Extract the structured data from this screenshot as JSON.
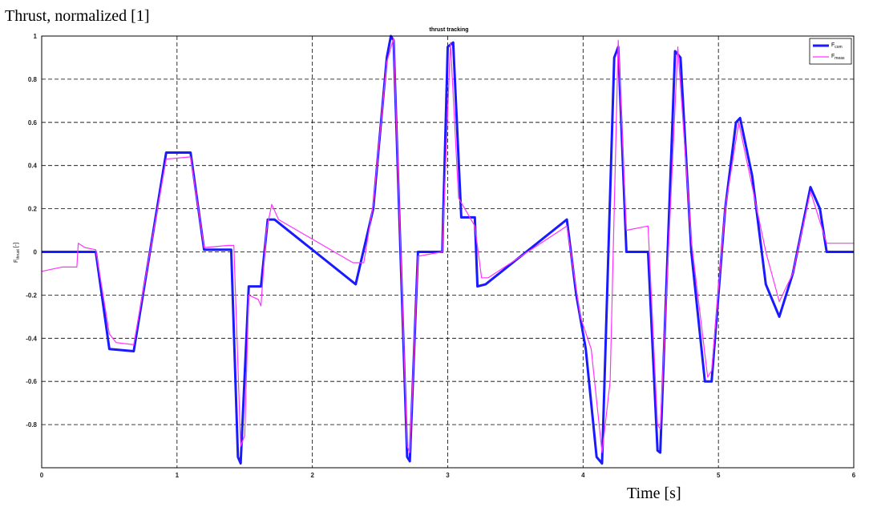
{
  "chart_data": {
    "type": "line",
    "annotation": "Thrust, normalized [1]",
    "title": "thrust tracking",
    "xlabel": "Time [s]",
    "ylabel": {
      "main": "F",
      "sub": "thrust",
      "unit": "[-]"
    },
    "xlim": [
      0,
      6
    ],
    "ylim": [
      -1,
      1
    ],
    "xticks": [
      0,
      1,
      2,
      3,
      4,
      5,
      6
    ],
    "yticks": [
      -0.8,
      -0.6,
      -0.4,
      -0.2,
      0,
      0.2,
      0.4,
      0.6,
      0.8,
      1
    ],
    "grid": true,
    "legend": "upper right",
    "series": [
      {
        "name": "F",
        "subscript": "com",
        "color": "#1a1aff",
        "width": 3,
        "x": [
          0,
          0.4,
          0.5,
          0.68,
          0.92,
          1.1,
          1.2,
          1.4,
          1.45,
          1.47,
          1.53,
          1.62,
          1.67,
          1.72,
          2.32,
          2.45,
          2.55,
          2.58,
          2.6,
          2.7,
          2.72,
          2.78,
          2.96,
          3.0,
          3.04,
          3.1,
          3.2,
          3.22,
          3.28,
          3.88,
          3.95,
          4.02,
          4.1,
          4.14,
          4.23,
          4.26,
          4.32,
          4.48,
          4.55,
          4.57,
          4.68,
          4.72,
          4.8,
          4.9,
          4.95,
          5.05,
          5.13,
          5.16,
          5.25,
          5.35,
          5.45,
          5.55,
          5.68,
          5.75,
          5.8,
          6
        ],
        "values": [
          0,
          0,
          -0.45,
          -0.46,
          0.46,
          0.46,
          0.01,
          0.01,
          -0.95,
          -0.98,
          -0.16,
          -0.16,
          0.15,
          0.15,
          -0.15,
          0.2,
          0.9,
          1.0,
          0.98,
          -0.95,
          -0.97,
          0,
          0,
          0.95,
          0.97,
          0.16,
          0.16,
          -0.16,
          -0.15,
          0.15,
          -0.2,
          -0.45,
          -0.95,
          -0.98,
          0.9,
          0.95,
          0,
          0,
          -0.92,
          -0.93,
          0.93,
          0.9,
          0,
          -0.6,
          -0.6,
          0.2,
          0.6,
          0.62,
          0.35,
          -0.15,
          -0.3,
          -0.1,
          0.3,
          0.2,
          0,
          0
        ]
      },
      {
        "name": "F",
        "subscript": "meas",
        "color": "#ff33ff",
        "width": 1.2,
        "x": [
          0,
          0.15,
          0.26,
          0.27,
          0.32,
          0.4,
          0.5,
          0.55,
          0.68,
          0.92,
          1.1,
          1.2,
          1.38,
          1.42,
          1.47,
          1.5,
          1.53,
          1.6,
          1.62,
          1.66,
          1.7,
          1.75,
          2.3,
          2.38,
          2.45,
          2.55,
          2.6,
          2.7,
          2.72,
          2.78,
          2.96,
          3.02,
          3.08,
          3.2,
          3.25,
          3.3,
          3.88,
          3.98,
          4.06,
          4.14,
          4.2,
          4.26,
          4.32,
          4.48,
          4.55,
          4.57,
          4.7,
          4.8,
          4.92,
          4.95,
          5.05,
          5.15,
          5.25,
          5.35,
          5.45,
          5.55,
          5.68,
          5.8,
          6
        ],
        "values": [
          -0.09,
          -0.07,
          -0.07,
          0.04,
          0.02,
          0.01,
          -0.38,
          -0.42,
          -0.43,
          0.43,
          0.44,
          0.02,
          0.03,
          0.03,
          -0.9,
          -0.85,
          -0.2,
          -0.22,
          -0.25,
          0.1,
          0.22,
          0.15,
          -0.05,
          -0.05,
          0.22,
          0.88,
          0.99,
          -0.9,
          -0.93,
          -0.02,
          0,
          0.97,
          0.25,
          0.12,
          -0.12,
          -0.12,
          0.12,
          -0.3,
          -0.45,
          -0.93,
          -0.6,
          0.98,
          0.1,
          0.12,
          -0.8,
          -0.82,
          0.95,
          0.05,
          -0.58,
          -0.55,
          0.2,
          0.6,
          0.3,
          0,
          -0.23,
          -0.1,
          0.28,
          0.04,
          0.04
        ]
      }
    ]
  }
}
